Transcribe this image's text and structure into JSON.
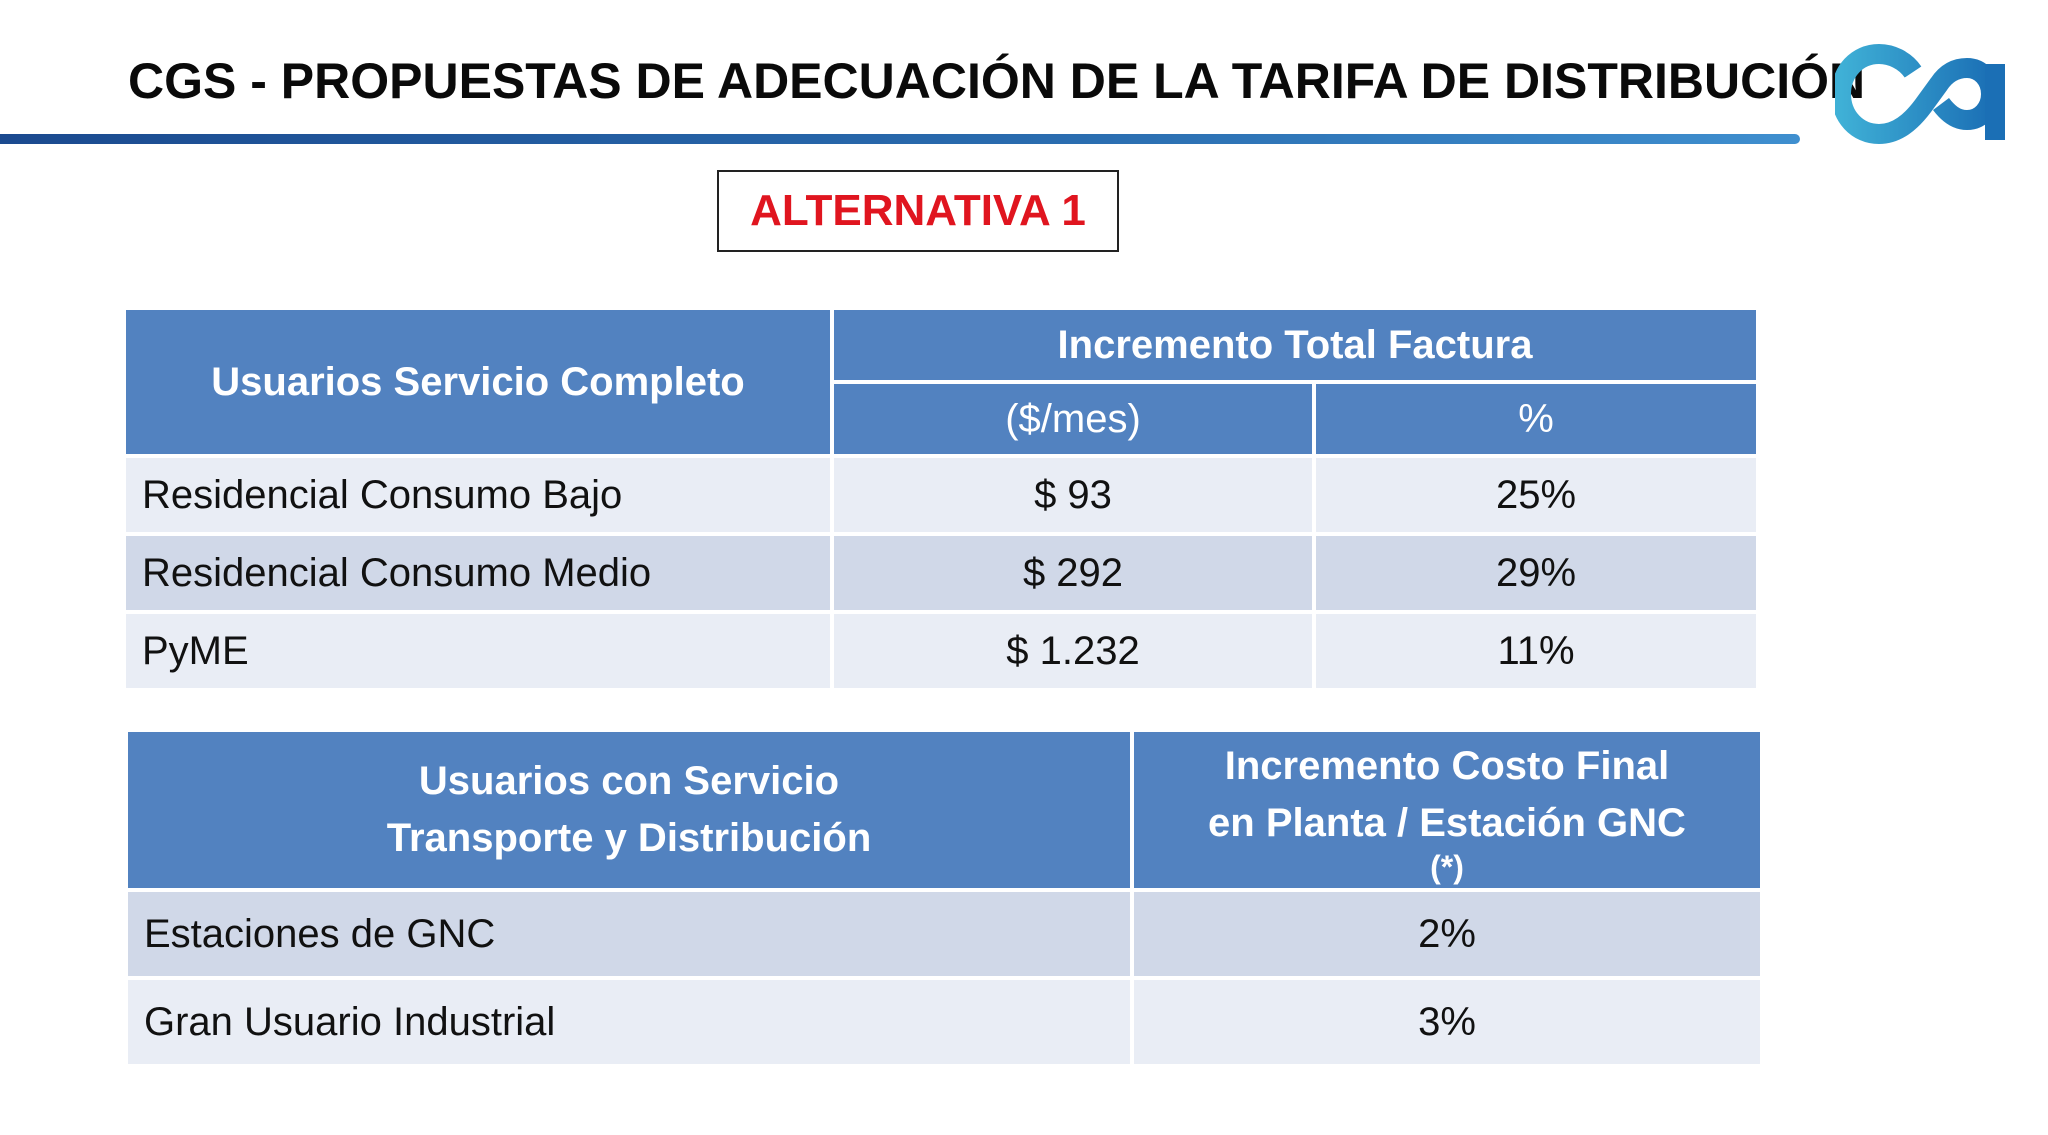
{
  "slide": {
    "title": "CGS - PROPUESTAS DE ADECUACIÓN DE LA TARIFA DE DISTRIBUCIÓN",
    "alternative_label": "ALTERNATIVA 1",
    "logo": {
      "icon": "ca-logo-icon",
      "text": "ca",
      "colors": [
        "#1b6fb5",
        "#3fb0d6"
      ]
    }
  },
  "table1": {
    "header_users": "Usuarios Servicio Completo",
    "header_increment": "Incremento Total Factura",
    "header_amount": "($/mes)",
    "header_percent": "%",
    "rows": [
      {
        "label": "Residencial Consumo Bajo",
        "amount": "$ 93",
        "percent": "25%"
      },
      {
        "label": "Residencial Consumo Medio",
        "amount": "$ 292",
        "percent": "29%"
      },
      {
        "label": "PyME",
        "amount": "$ 1.232",
        "percent": "11%"
      }
    ]
  },
  "table2": {
    "header_users_line1": "Usuarios con Servicio",
    "header_users_line2": "Transporte y Distribución",
    "header_increment_line1": "Incremento Costo Final",
    "header_increment_line2": "en Planta / Estación GNC",
    "header_increment_note": "(*)",
    "rows": [
      {
        "label": "Estaciones de GNC",
        "percent": "2%"
      },
      {
        "label": "Gran Usuario Industrial",
        "percent": "3%"
      }
    ]
  },
  "colors": {
    "header_blue": "#5282c0",
    "row_light": "#e9edf5",
    "row_dark": "#d0d8e8",
    "alternative_red": "#e0151f"
  }
}
